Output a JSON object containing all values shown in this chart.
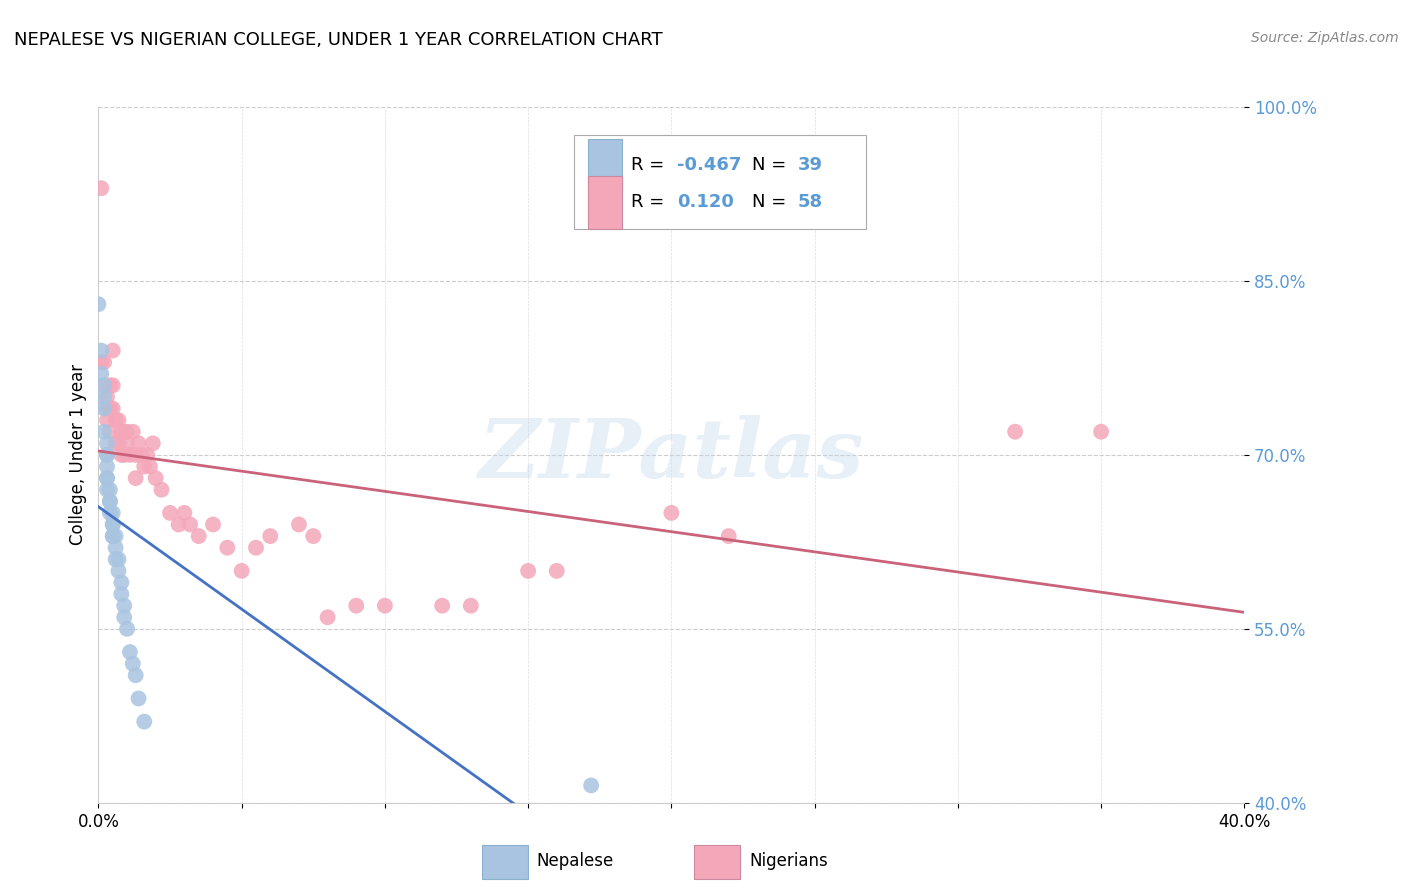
{
  "title": "NEPALESE VS NIGERIAN COLLEGE, UNDER 1 YEAR CORRELATION CHART",
  "source": "Source: ZipAtlas.com",
  "ylabel": "College, Under 1 year",
  "xlim": [
    0.0,
    0.4
  ],
  "ylim": [
    0.4,
    1.0
  ],
  "xticks": [
    0.0,
    0.05,
    0.1,
    0.15,
    0.2,
    0.25,
    0.3,
    0.35,
    0.4
  ],
  "yticks": [
    0.4,
    0.55,
    0.7,
    0.85,
    1.0
  ],
  "yticklabels": [
    "40.0%",
    "55.0%",
    "70.0%",
    "85.0%",
    "100.0%"
  ],
  "nepalese_R": -0.467,
  "nepalese_N": 39,
  "nigerian_R": 0.12,
  "nigerian_N": 58,
  "nepalese_color": "#a8c4e0",
  "nigerian_color": "#f4a7b9",
  "nepalese_line_color": "#4472c4",
  "nigerian_line_color": "#c9627a",
  "watermark": "ZIPatlas",
  "nepalese_x": [
    0.0,
    0.001,
    0.001,
    0.002,
    0.002,
    0.002,
    0.002,
    0.003,
    0.003,
    0.003,
    0.003,
    0.003,
    0.003,
    0.003,
    0.004,
    0.004,
    0.004,
    0.004,
    0.005,
    0.005,
    0.005,
    0.005,
    0.005,
    0.006,
    0.006,
    0.006,
    0.007,
    0.007,
    0.008,
    0.008,
    0.009,
    0.009,
    0.01,
    0.011,
    0.012,
    0.013,
    0.014,
    0.016,
    0.172
  ],
  "nepalese_y": [
    0.83,
    0.79,
    0.77,
    0.76,
    0.75,
    0.74,
    0.72,
    0.71,
    0.7,
    0.7,
    0.69,
    0.68,
    0.68,
    0.67,
    0.67,
    0.66,
    0.66,
    0.65,
    0.65,
    0.64,
    0.64,
    0.63,
    0.63,
    0.63,
    0.62,
    0.61,
    0.61,
    0.6,
    0.59,
    0.58,
    0.57,
    0.56,
    0.55,
    0.53,
    0.52,
    0.51,
    0.49,
    0.47,
    0.415
  ],
  "nigerian_x": [
    0.001,
    0.001,
    0.002,
    0.002,
    0.003,
    0.003,
    0.003,
    0.004,
    0.004,
    0.004,
    0.005,
    0.005,
    0.005,
    0.006,
    0.006,
    0.007,
    0.007,
    0.008,
    0.008,
    0.009,
    0.009,
    0.01,
    0.01,
    0.011,
    0.012,
    0.013,
    0.013,
    0.014,
    0.015,
    0.016,
    0.017,
    0.018,
    0.019,
    0.02,
    0.022,
    0.025,
    0.028,
    0.03,
    0.032,
    0.035,
    0.04,
    0.045,
    0.05,
    0.055,
    0.06,
    0.07,
    0.075,
    0.08,
    0.09,
    0.1,
    0.12,
    0.13,
    0.15,
    0.16,
    0.2,
    0.22,
    0.32,
    0.35
  ],
  "nigerian_y": [
    0.93,
    0.78,
    0.78,
    0.76,
    0.75,
    0.74,
    0.73,
    0.76,
    0.74,
    0.72,
    0.79,
    0.76,
    0.74,
    0.73,
    0.71,
    0.73,
    0.71,
    0.72,
    0.7,
    0.72,
    0.7,
    0.72,
    0.71,
    0.7,
    0.72,
    0.7,
    0.68,
    0.71,
    0.7,
    0.69,
    0.7,
    0.69,
    0.71,
    0.68,
    0.67,
    0.65,
    0.64,
    0.65,
    0.64,
    0.63,
    0.64,
    0.62,
    0.6,
    0.62,
    0.63,
    0.64,
    0.63,
    0.56,
    0.57,
    0.57,
    0.57,
    0.57,
    0.6,
    0.6,
    0.65,
    0.63,
    0.72,
    0.72
  ]
}
